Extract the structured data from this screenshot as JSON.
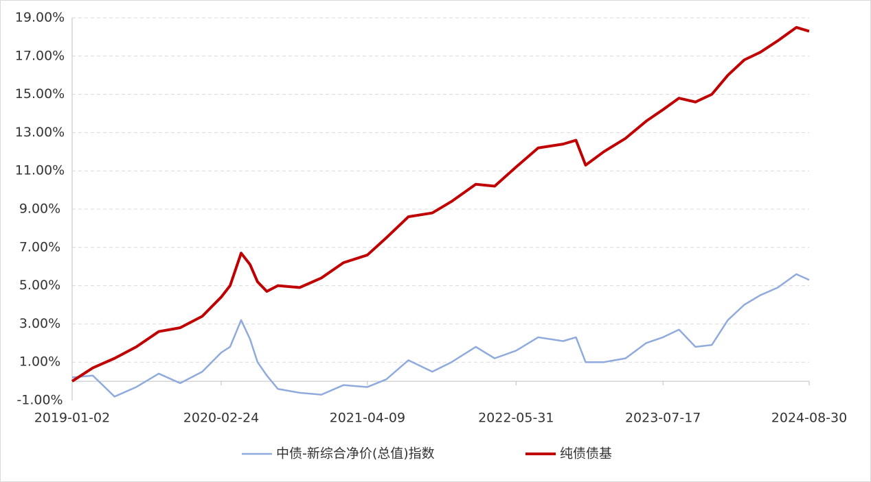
{
  "chart_data": {
    "type": "line",
    "x": [
      "2019-01-02",
      "2019-03-01",
      "2019-05-01",
      "2019-07-01",
      "2019-09-02",
      "2019-11-01",
      "2020-01-02",
      "2020-02-24",
      "2020-03-20",
      "2020-04-20",
      "2020-05-15",
      "2020-06-05",
      "2020-07-01",
      "2020-08-01",
      "2020-10-01",
      "2020-12-01",
      "2021-02-01",
      "2021-04-09",
      "2021-06-01",
      "2021-08-02",
      "2021-10-08",
      "2021-12-01",
      "2022-02-07",
      "2022-04-01",
      "2022-05-31",
      "2022-08-01",
      "2022-10-10",
      "2022-11-15",
      "2022-12-12",
      "2023-02-01",
      "2023-04-03",
      "2023-05-31",
      "2023-07-17",
      "2023-08-31",
      "2023-10-16",
      "2023-12-01",
      "2024-01-15",
      "2024-03-01",
      "2024-04-15",
      "2024-06-03",
      "2024-07-25",
      "2024-08-30"
    ],
    "xlim": [
      "2019-01-02",
      "2024-08-30"
    ],
    "xticks": [
      "2019-01-02",
      "2020-02-24",
      "2021-04-09",
      "2022-05-31",
      "2023-07-17",
      "2024-08-30"
    ],
    "ylim": [
      -1,
      19
    ],
    "yticks": [
      {
        "value": -1,
        "label": "-1.00%"
      },
      {
        "value": 1,
        "label": "1.00%"
      },
      {
        "value": 3,
        "label": "3.00%"
      },
      {
        "value": 5,
        "label": "5.00%"
      },
      {
        "value": 7,
        "label": "7.00%"
      },
      {
        "value": 9,
        "label": "9.00%"
      },
      {
        "value": 11,
        "label": "11.00%"
      },
      {
        "value": 13,
        "label": "13.00%"
      },
      {
        "value": 15,
        "label": "15.00%"
      },
      {
        "value": 17,
        "label": "17.00%"
      },
      {
        "value": 19,
        "label": "19.00%"
      }
    ],
    "grid": true,
    "legend": "bottom",
    "series": [
      {
        "name": "中债-新综合净价(总值)指数",
        "color": "#8faadc",
        "values": [
          0.2,
          0.3,
          -0.8,
          -0.3,
          0.4,
          -0.1,
          0.5,
          1.5,
          1.8,
          3.2,
          2.2,
          1.0,
          0.3,
          -0.4,
          -0.6,
          -0.7,
          -0.2,
          -0.3,
          0.1,
          1.1,
          0.5,
          1.0,
          1.8,
          1.2,
          1.6,
          2.3,
          2.1,
          2.3,
          1.0,
          1.0,
          1.2,
          2.0,
          2.3,
          2.7,
          1.8,
          1.9,
          3.2,
          4.0,
          4.5,
          4.9,
          5.6,
          5.3
        ]
      },
      {
        "name": "纯债债基",
        "color": "#c00000",
        "values": [
          0.0,
          0.7,
          1.2,
          1.8,
          2.6,
          2.8,
          3.4,
          4.4,
          5.0,
          6.7,
          6.1,
          5.2,
          4.7,
          5.0,
          4.9,
          5.4,
          6.2,
          6.6,
          7.5,
          8.6,
          8.8,
          9.4,
          10.3,
          10.2,
          11.2,
          12.2,
          12.4,
          12.6,
          11.3,
          12.0,
          12.7,
          13.6,
          14.2,
          14.8,
          14.6,
          15.0,
          16.0,
          16.8,
          17.2,
          17.8,
          18.5,
          18.3
        ]
      }
    ]
  }
}
